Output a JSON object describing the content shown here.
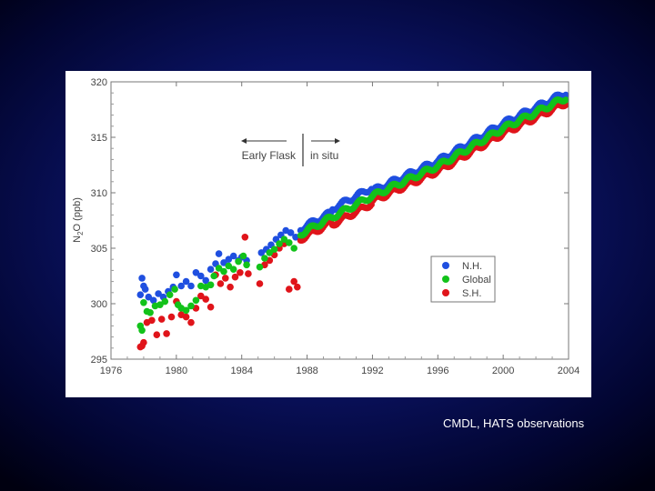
{
  "caption": "CMDL, HATS observations",
  "colors": {
    "nh": "#1f4fe0",
    "global": "#12c21a",
    "sh": "#e0141a"
  },
  "chart_data": {
    "type": "scatter",
    "title": "",
    "xlabel": "",
    "ylabel": "N2O (ppb)",
    "ylabel_parts": {
      "base": "N",
      "sub": "2",
      "rest": "O (ppb)"
    },
    "xlim": [
      1976,
      2004
    ],
    "ylim": [
      295,
      320
    ],
    "xticks": [
      "1976",
      "1980",
      "1984",
      "1988",
      "1992",
      "1996",
      "2000",
      "2004"
    ],
    "yticks": [
      "295",
      "300",
      "305",
      "310",
      "315",
      "320"
    ],
    "grid": false,
    "legend_position": "lower-right",
    "annotations": {
      "early": "Early Flask",
      "insitu": "in situ",
      "divider_year": 1987.9
    },
    "series": [
      {
        "name": "N.H.",
        "color": "#1f4fe0",
        "points": [
          [
            1977.8,
            300.8
          ],
          [
            1977.9,
            302.3
          ],
          [
            1978.0,
            301.6
          ],
          [
            1978.1,
            301.3
          ],
          [
            1978.3,
            300.6
          ],
          [
            1978.6,
            300.3
          ],
          [
            1978.9,
            300.9
          ],
          [
            1979.2,
            300.6
          ],
          [
            1979.5,
            301.1
          ],
          [
            1979.8,
            301.5
          ],
          [
            1980.0,
            302.6
          ],
          [
            1980.3,
            301.6
          ],
          [
            1980.6,
            302.0
          ],
          [
            1980.9,
            301.6
          ],
          [
            1981.2,
            302.8
          ],
          [
            1981.5,
            302.5
          ],
          [
            1981.8,
            302.1
          ],
          [
            1982.1,
            303.1
          ],
          [
            1982.4,
            303.6
          ],
          [
            1982.6,
            304.5
          ],
          [
            1982.9,
            303.7
          ],
          [
            1983.2,
            304.0
          ],
          [
            1983.5,
            304.3
          ],
          [
            1983.8,
            303.9
          ],
          [
            1984.0,
            304.2
          ],
          [
            1984.3,
            303.9
          ],
          [
            1985.2,
            304.6
          ],
          [
            1985.5,
            304.9
          ],
          [
            1985.8,
            305.3
          ],
          [
            1986.1,
            305.8
          ],
          [
            1986.4,
            306.2
          ],
          [
            1986.7,
            306.6
          ],
          [
            1987.0,
            306.4
          ],
          [
            1987.3,
            306.0
          ]
        ]
      },
      {
        "name": "Global",
        "color": "#12c21a",
        "points": [
          [
            1977.8,
            298.0
          ],
          [
            1977.9,
            297.6
          ],
          [
            1978.0,
            300.1
          ],
          [
            1978.2,
            299.3
          ],
          [
            1978.4,
            299.2
          ],
          [
            1978.7,
            299.8
          ],
          [
            1979.0,
            299.9
          ],
          [
            1979.3,
            300.2
          ],
          [
            1979.6,
            300.8
          ],
          [
            1979.9,
            301.3
          ],
          [
            1980.1,
            299.9
          ],
          [
            1980.3,
            299.6
          ],
          [
            1980.6,
            299.4
          ],
          [
            1980.9,
            299.8
          ],
          [
            1981.2,
            300.3
          ],
          [
            1981.5,
            301.6
          ],
          [
            1981.8,
            301.5
          ],
          [
            1982.1,
            301.7
          ],
          [
            1982.3,
            302.5
          ],
          [
            1982.6,
            303.2
          ],
          [
            1982.9,
            302.9
          ],
          [
            1983.2,
            303.4
          ],
          [
            1983.5,
            303.1
          ],
          [
            1983.8,
            303.8
          ],
          [
            1984.1,
            304.3
          ],
          [
            1984.3,
            303.5
          ],
          [
            1985.1,
            303.3
          ],
          [
            1985.4,
            304.1
          ],
          [
            1985.7,
            304.6
          ],
          [
            1986.0,
            304.9
          ],
          [
            1986.3,
            305.4
          ],
          [
            1986.6,
            305.8
          ],
          [
            1986.9,
            305.5
          ],
          [
            1987.2,
            305.0
          ]
        ]
      },
      {
        "name": "S.H.",
        "color": "#e0141a",
        "points": [
          [
            1977.8,
            296.1
          ],
          [
            1977.9,
            296.2
          ],
          [
            1978.0,
            296.5
          ],
          [
            1978.2,
            298.3
          ],
          [
            1978.5,
            298.5
          ],
          [
            1978.8,
            297.2
          ],
          [
            1979.1,
            298.6
          ],
          [
            1979.4,
            297.3
          ],
          [
            1979.7,
            298.8
          ],
          [
            1980.0,
            300.2
          ],
          [
            1980.3,
            299.0
          ],
          [
            1980.6,
            298.8
          ],
          [
            1980.9,
            298.3
          ],
          [
            1981.2,
            299.6
          ],
          [
            1981.5,
            300.7
          ],
          [
            1981.8,
            300.4
          ],
          [
            1982.1,
            299.7
          ],
          [
            1982.4,
            302.6
          ],
          [
            1982.7,
            301.8
          ],
          [
            1983.0,
            302.3
          ],
          [
            1983.3,
            301.5
          ],
          [
            1983.6,
            302.4
          ],
          [
            1983.9,
            302.8
          ],
          [
            1984.2,
            306.0
          ],
          [
            1984.4,
            302.7
          ],
          [
            1985.1,
            301.8
          ],
          [
            1985.4,
            303.5
          ],
          [
            1985.7,
            303.9
          ],
          [
            1986.0,
            304.4
          ],
          [
            1986.3,
            305.0
          ],
          [
            1986.6,
            305.4
          ],
          [
            1986.9,
            301.3
          ],
          [
            1987.2,
            302.0
          ],
          [
            1987.4,
            301.5
          ]
        ]
      }
    ]
  }
}
